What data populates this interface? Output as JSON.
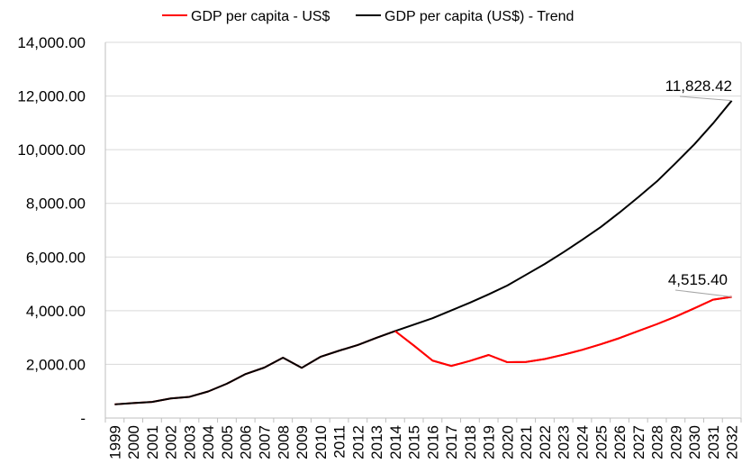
{
  "chart_data": {
    "type": "line",
    "title": "",
    "xlabel": "",
    "ylabel": "",
    "x": [
      "1999",
      "2000",
      "2001",
      "2002",
      "2003",
      "2004",
      "2005",
      "2006",
      "2007",
      "2008",
      "2009",
      "2010",
      "2011",
      "2012",
      "2013",
      "2014",
      "2015",
      "2016",
      "2017",
      "2018",
      "2019",
      "2020",
      "2021",
      "2022",
      "2023",
      "2024",
      "2025",
      "2026",
      "2027",
      "2028",
      "2029",
      "2030",
      "2031",
      "2032"
    ],
    "ylim": [
      0,
      14000
    ],
    "yticks": [
      0,
      2000,
      4000,
      6000,
      8000,
      10000,
      12000,
      14000
    ],
    "ytick_labels": [
      "-",
      "2,000.00",
      "4,000.00",
      "6,000.00",
      "8,000.00",
      "10,000.00",
      "12,000.00",
      "14,000.00"
    ],
    "grid": true,
    "legend_position": "top",
    "series": [
      {
        "name": "GDP per capita - US$",
        "color": "#ff0000",
        "values": [
          510,
          560,
          600,
          730,
          790,
          990,
          1280,
          1640,
          1880,
          2250,
          1870,
          2280,
          2510,
          2720,
          2990,
          3240,
          2700,
          2140,
          1940,
          2130,
          2350,
          2080,
          2090,
          2200,
          2360,
          2540,
          2750,
          2980,
          3240,
          3500,
          3780,
          4090,
          4410,
          4515.4
        ],
        "end_label": "4,515.40"
      },
      {
        "name": "GDP per capita (US$) - Trend",
        "color": "#000000",
        "values": [
          510,
          560,
          600,
          730,
          790,
          990,
          1280,
          1640,
          1880,
          2250,
          1870,
          2280,
          2510,
          2720,
          2990,
          3240,
          3480,
          3720,
          4010,
          4300,
          4610,
          4940,
          5340,
          5740,
          6180,
          6640,
          7120,
          7660,
          8230,
          8820,
          9500,
          10200,
          10980,
          11828.42
        ],
        "end_label": "11,828.42"
      }
    ]
  }
}
